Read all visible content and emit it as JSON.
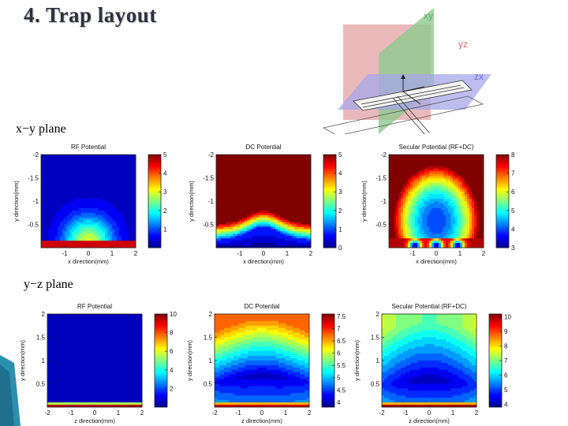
{
  "slide": {
    "title": "4. Trap layout",
    "row_labels": [
      "x−y plane",
      "y−z plane"
    ]
  },
  "geometry_figure": {
    "plane_labels": [
      "xy",
      "yz",
      "zx"
    ],
    "colors": {
      "xy": "#8ec98e",
      "yz": "#e3a3a3",
      "zx": "#a7a7ea"
    }
  },
  "colorscale": [
    "#00008f",
    "#0000ff",
    "#0080ff",
    "#00ffff",
    "#80ff80",
    "#ffff00",
    "#ff8000",
    "#ff0000",
    "#800000"
  ],
  "chart_data": [
    {
      "type": "heatmap",
      "title": "RF Potential",
      "xlabel": "x direction(mm)",
      "ylabel": "y direction(mm)",
      "xlim": [
        -2,
        2
      ],
      "ylim": [
        -2,
        0
      ],
      "xticks": [
        "-1",
        "0",
        "1",
        "2"
      ],
      "yticks": [
        "-2",
        "-1.5",
        "-1",
        "-0.5"
      ],
      "colorbar_ticks": [
        "5",
        "4",
        "3",
        "2",
        "1"
      ],
      "colorbar_range": [
        0,
        5
      ]
    },
    {
      "type": "heatmap",
      "title": "DC Potential",
      "xlabel": "x direction(mm)",
      "ylabel": "y direction(mm)",
      "xlim": [
        -2,
        2
      ],
      "ylim": [
        -2,
        0
      ],
      "xticks": [
        "-1",
        "0",
        "1",
        "2"
      ],
      "yticks": [
        "-2",
        "-1.5",
        "-1",
        "-0.5"
      ],
      "colorbar_ticks": [
        "5",
        "4",
        "3",
        "2",
        "1",
        "0"
      ],
      "colorbar_range": [
        0,
        5
      ]
    },
    {
      "type": "heatmap",
      "title": "Secular Potential (RF+DC)",
      "xlabel": "x direction(mm)",
      "ylabel": "y direction(mm)",
      "xlim": [
        -2,
        2
      ],
      "ylim": [
        -2,
        0
      ],
      "xticks": [
        "-1",
        "0",
        "1",
        "2"
      ],
      "yticks": [
        "-2",
        "-1.5",
        "-1",
        "-0.5"
      ],
      "colorbar_ticks": [
        "8",
        "7",
        "6",
        "5",
        "4",
        "3"
      ],
      "colorbar_range": [
        3,
        8
      ]
    },
    {
      "type": "heatmap",
      "title": "RF Potential",
      "xlabel": "z direction(mm)",
      "ylabel": "y direction(mm)",
      "xlim": [
        -2,
        2
      ],
      "ylim": [
        0,
        2
      ],
      "xticks": [
        "-2",
        "-1",
        "0",
        "1",
        "2"
      ],
      "yticks": [
        "2",
        "1.5",
        "1",
        "0.5"
      ],
      "colorbar_ticks": [
        "10",
        "8",
        "6",
        "4",
        "2"
      ],
      "colorbar_range": [
        0,
        10
      ]
    },
    {
      "type": "heatmap",
      "title": "DC Potential",
      "xlabel": "z direction(mm)",
      "ylabel": "y direction(mm)",
      "xlim": [
        -2,
        2
      ],
      "ylim": [
        0,
        2
      ],
      "xticks": [
        "-2",
        "-1",
        "0",
        "1",
        "2"
      ],
      "yticks": [
        "2",
        "1.5",
        "1",
        "0.5"
      ],
      "colorbar_ticks": [
        "7.5",
        "7",
        "6.5",
        "6",
        "5.5",
        "5",
        "4.5",
        "4"
      ],
      "colorbar_range": [
        3.8,
        7.6
      ]
    },
    {
      "type": "heatmap",
      "title": "Secular Potential (RF+DC)",
      "xlabel": "z direction(mm)",
      "ylabel": "y direction(mm)",
      "xlim": [
        -2,
        2
      ],
      "ylim": [
        0,
        2
      ],
      "xticks": [
        "-2",
        "-1",
        "0",
        "1",
        "2"
      ],
      "yticks": [
        "2",
        "1.5",
        "1",
        "0.5"
      ],
      "colorbar_ticks": [
        "10",
        "9",
        "8",
        "7",
        "6",
        "5",
        "4"
      ],
      "colorbar_range": [
        3.8,
        10.2
      ]
    }
  ]
}
